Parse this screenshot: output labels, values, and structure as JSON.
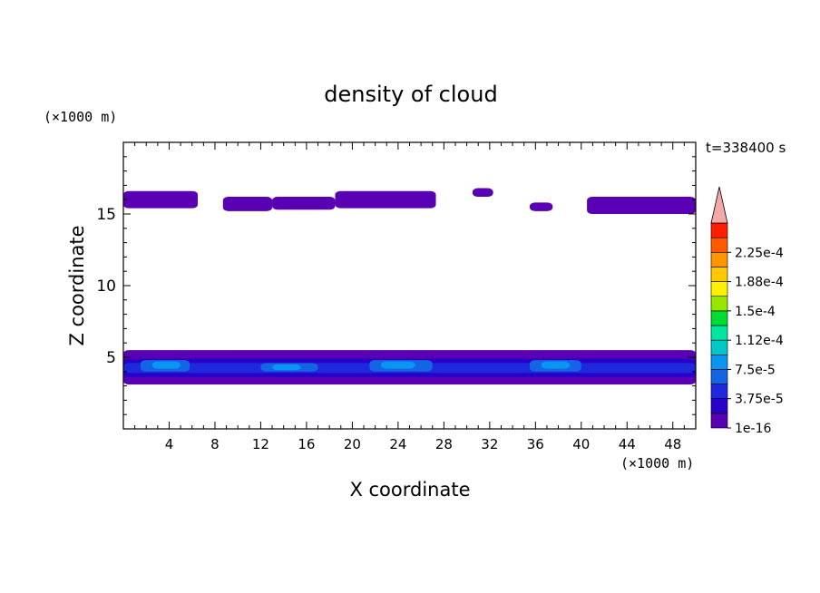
{
  "chart_data": {
    "type": "heatmap",
    "title": "density of cloud",
    "xlabel": "X coordinate",
    "ylabel": "Z coordinate",
    "x_unit": "(×1000 m)",
    "y_unit": "(×1000 m)",
    "time_label": "t=338400 s",
    "xlim": [
      0,
      50
    ],
    "ylim": [
      0,
      20
    ],
    "x_ticks": [
      4,
      8,
      12,
      16,
      20,
      24,
      28,
      32,
      36,
      40,
      44,
      48
    ],
    "x_tick_labels": [
      "4",
      "8",
      "12",
      "16",
      "20",
      "24",
      "28",
      "32",
      "36",
      "40",
      "44",
      "48"
    ],
    "y_ticks": [
      5,
      10,
      15
    ],
    "y_tick_labels": [
      "5",
      "10",
      "15"
    ],
    "colorbar": {
      "levels": [
        1e-16,
        1.875e-05,
        3.75e-05,
        5.625e-05,
        7.5e-05,
        9.375e-05,
        0.000112,
        0.000131,
        0.00015,
        0.000169,
        0.000188,
        0.000206,
        0.000225,
        0.000244
      ],
      "labels": [
        "1e-16",
        "3.75e-5",
        "7.5e-5",
        "1.12e-4",
        "1.5e-4",
        "1.88e-4",
        "2.25e-4"
      ],
      "label_levels": [
        0,
        2,
        4,
        6,
        8,
        10,
        12
      ],
      "colors": [
        "#5a00b4",
        "#2800c8",
        "#1e28dc",
        "#1464e6",
        "#0a96f0",
        "#00c8c8",
        "#00e6a0",
        "#00dc32",
        "#96e600",
        "#fff000",
        "#ffc800",
        "#ff9600",
        "#ff5a00",
        "#ff1e00"
      ],
      "extend_color": "#f4a9a9"
    },
    "regions": [
      {
        "level": 0,
        "x_range": [
          0,
          6.5
        ],
        "z_range": [
          15.4,
          16.6
        ]
      },
      {
        "level": 0,
        "x_range": [
          8.7,
          13
        ],
        "z_range": [
          15.2,
          16.2
        ]
      },
      {
        "level": 0,
        "x_range": [
          13,
          18.5
        ],
        "z_range": [
          15.3,
          16.2
        ]
      },
      {
        "level": 0,
        "x_range": [
          18.5,
          27.3
        ],
        "z_range": [
          15.4,
          16.6
        ]
      },
      {
        "level": 0,
        "x_range": [
          30.5,
          32.3
        ],
        "z_range": [
          16.2,
          16.8
        ]
      },
      {
        "level": 0,
        "x_range": [
          35.5,
          37.5
        ],
        "z_range": [
          15.2,
          15.8
        ]
      },
      {
        "level": 0,
        "x_range": [
          40.5,
          50
        ],
        "z_range": [
          15.0,
          16.2
        ]
      },
      {
        "level": 0,
        "x_range": [
          0,
          50
        ],
        "z_range": [
          3.1,
          5.5
        ]
      },
      {
        "level": 1,
        "x_range": [
          0,
          50
        ],
        "z_range": [
          3.6,
          4.9
        ]
      },
      {
        "level": 2,
        "x_range": [
          0,
          50
        ],
        "z_range": [
          3.9,
          4.6
        ]
      },
      {
        "level": 3,
        "x_range": [
          1.5,
          5.8
        ],
        "z_range": [
          4.0,
          4.8
        ]
      },
      {
        "level": 3,
        "x_range": [
          12,
          17
        ],
        "z_range": [
          4.0,
          4.6
        ]
      },
      {
        "level": 3,
        "x_range": [
          21.5,
          27
        ],
        "z_range": [
          4.0,
          4.8
        ]
      },
      {
        "level": 3,
        "x_range": [
          35.5,
          40
        ],
        "z_range": [
          4.0,
          4.8
        ]
      },
      {
        "level": 4,
        "x_range": [
          2.5,
          5
        ],
        "z_range": [
          4.2,
          4.7
        ]
      },
      {
        "level": 4,
        "x_range": [
          13,
          15.5
        ],
        "z_range": [
          4.1,
          4.5
        ]
      },
      {
        "level": 4,
        "x_range": [
          22.5,
          25.5
        ],
        "z_range": [
          4.2,
          4.7
        ]
      },
      {
        "level": 4,
        "x_range": [
          36.5,
          39
        ],
        "z_range": [
          4.2,
          4.7
        ]
      }
    ]
  }
}
